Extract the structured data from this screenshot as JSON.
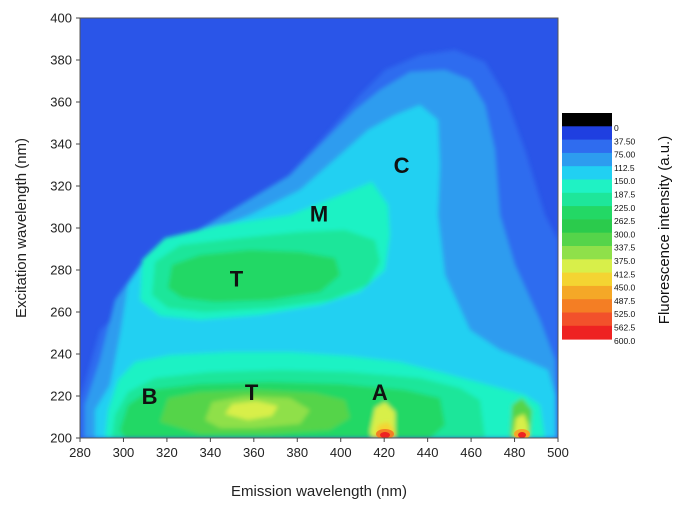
{
  "chart_data": {
    "type": "heatmap",
    "xlabel": "Emission wavelength (nm)",
    "ylabel": "Excitation wavelength (nm)",
    "xlim": [
      280,
      500
    ],
    "ylim": [
      200,
      400
    ],
    "x_ticks": [
      "280",
      "300",
      "320",
      "340",
      "360",
      "380",
      "400",
      "420",
      "440",
      "460",
      "480",
      "500"
    ],
    "y_ticks": [
      "200",
      "220",
      "240",
      "260",
      "280",
      "300",
      "320",
      "340",
      "360",
      "380",
      "400"
    ],
    "colorbar": {
      "title": "Fluorescence intensity (a.u.)",
      "levels": [
        "0",
        "37.50",
        "75.00",
        "112.5",
        "150.0",
        "187.5",
        "225.0",
        "262.5",
        "300.0",
        "337.5",
        "375.0",
        "412.5",
        "450.0",
        "487.5",
        "525.0",
        "562.5",
        "600.0"
      ],
      "colors": [
        "#000000",
        "#1f3fe0",
        "#2f6cef",
        "#2d9cef",
        "#21d0f2",
        "#1ff2c4",
        "#1ee69a",
        "#23d865",
        "#2bcb4c",
        "#55d44a",
        "#8fe04a",
        "#d8ef4a",
        "#f4d432",
        "#f5a827",
        "#f47e24",
        "#f2512b",
        "#ee2222"
      ]
    },
    "grid": false,
    "peaks": [
      {
        "label": "B",
        "x": 312,
        "y": 220
      },
      {
        "label": "T",
        "x": 359,
        "y": 222
      },
      {
        "label": "A",
        "x": 418,
        "y": 222
      },
      {
        "label": "T",
        "x": 352,
        "y": 276
      },
      {
        "label": "M",
        "x": 390,
        "y": 307
      },
      {
        "label": "C",
        "x": 428,
        "y": 330
      }
    ]
  }
}
